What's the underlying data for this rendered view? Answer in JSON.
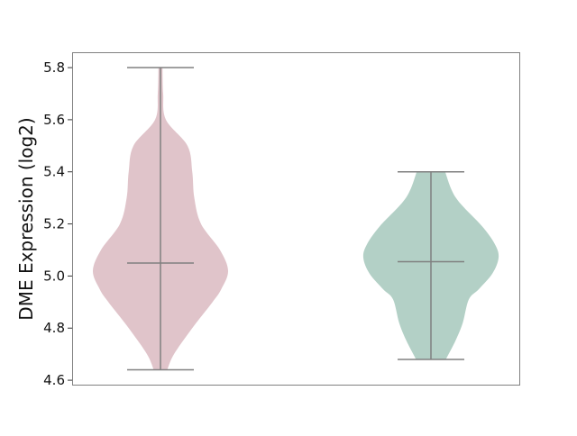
{
  "chart_data": {
    "type": "violin",
    "title": "",
    "xlabel": "",
    "ylabel": "DME Expression (log2)",
    "ylim": [
      4.583,
      5.859
    ],
    "yticks": [
      "4.6",
      "4.8",
      "5.0",
      "5.2",
      "5.4",
      "5.6",
      "5.8"
    ],
    "grid": false,
    "series": [
      {
        "color": "#e0c4ca",
        "min": 4.64,
        "max": 5.8,
        "median": 5.05,
        "density": [
          [
            4.64,
            0.1
          ],
          [
            4.7,
            0.2
          ],
          [
            4.8,
            0.47
          ],
          [
            4.9,
            0.77
          ],
          [
            4.95,
            0.9
          ],
          [
            5.02,
            1.0
          ],
          [
            5.1,
            0.88
          ],
          [
            5.2,
            0.6
          ],
          [
            5.3,
            0.5
          ],
          [
            5.4,
            0.47
          ],
          [
            5.5,
            0.4
          ],
          [
            5.6,
            0.08
          ],
          [
            5.7,
            0.04
          ],
          [
            5.8,
            0.03
          ]
        ]
      },
      {
        "color": "#b3d0c6",
        "min": 4.68,
        "max": 5.4,
        "median": 5.055,
        "density": [
          [
            4.68,
            0.22
          ],
          [
            4.75,
            0.36
          ],
          [
            4.82,
            0.47
          ],
          [
            4.91,
            0.56
          ],
          [
            4.95,
            0.71
          ],
          [
            5.01,
            0.91
          ],
          [
            5.07,
            1.0
          ],
          [
            5.12,
            0.95
          ],
          [
            5.19,
            0.76
          ],
          [
            5.3,
            0.37
          ],
          [
            5.4,
            0.21
          ]
        ]
      }
    ],
    "line_color": "#808080"
  }
}
